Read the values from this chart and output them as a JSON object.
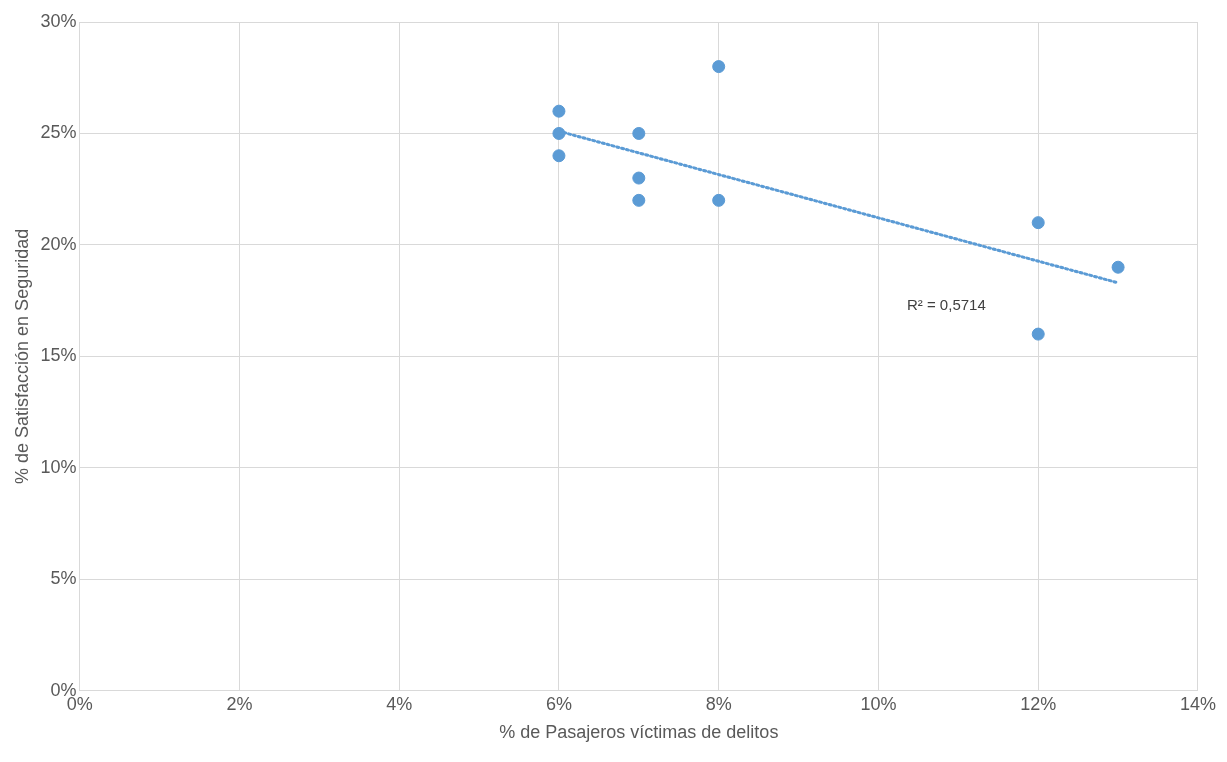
{
  "chart_data": {
    "type": "scatter",
    "xlabel": "% de Pasajeros víctimas de delitos",
    "ylabel": "% de Satisfacción en Seguridad",
    "series": [
      {
        "color": "#5b9bd5",
        "marker": "circle",
        "x": [
          6,
          6,
          6,
          7,
          7,
          7,
          8,
          8,
          12,
          12,
          13
        ],
        "values": [
          26,
          25,
          24,
          25,
          23,
          22,
          28,
          22,
          21,
          16,
          19
        ]
      },
      {
        "type": "line",
        "color": "#5b9bd5",
        "marker": "none",
        "line_style": "dotted",
        "x": [
          6,
          13
        ],
        "values": [
          25.1,
          18.3
        ]
      }
    ],
    "xlim": [
      0,
      14
    ],
    "xticks": [
      {
        "value": 0,
        "label": "0%"
      },
      {
        "value": 2,
        "label": "2%"
      },
      {
        "value": 4,
        "label": "4%"
      },
      {
        "value": 6,
        "label": "6%"
      },
      {
        "value": 8,
        "label": "8%"
      },
      {
        "value": 10,
        "label": "10%"
      },
      {
        "value": 12,
        "label": "12%"
      },
      {
        "value": 14,
        "label": "14%"
      }
    ],
    "ylim": [
      0,
      30
    ],
    "yticks": [
      {
        "value": 0,
        "label": "0%"
      },
      {
        "value": 5,
        "label": "5%"
      },
      {
        "value": 10,
        "label": "10%"
      },
      {
        "value": 15,
        "label": "15%"
      },
      {
        "value": 20,
        "label": "20%"
      },
      {
        "value": 25,
        "label": "25%"
      },
      {
        "value": 30,
        "label": "30%"
      }
    ],
    "grid": true,
    "legend": false,
    "annotations": [
      "R² = 0,5714"
    ]
  }
}
